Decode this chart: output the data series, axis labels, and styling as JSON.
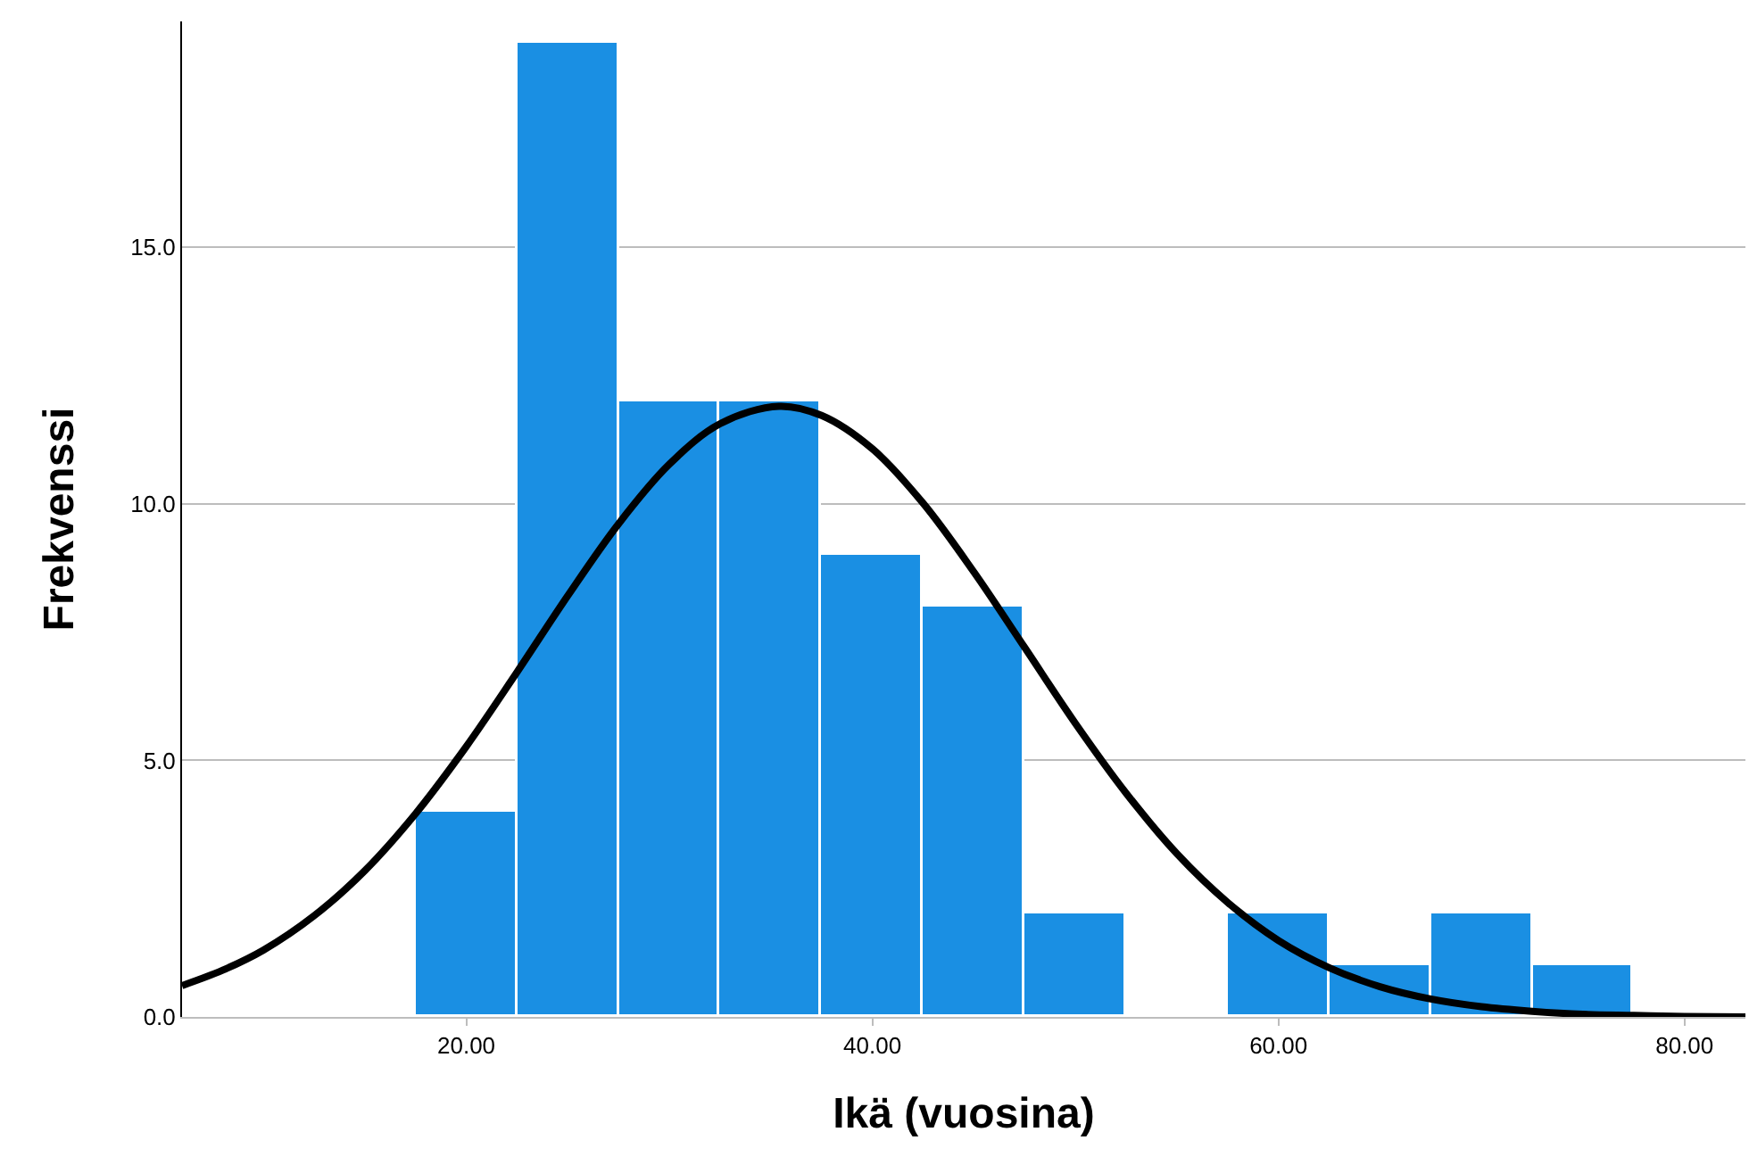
{
  "chart_data": {
    "type": "histogram",
    "xlabel": "Ikä (vuosina)",
    "ylabel": "Frekvenssi",
    "series": [
      {
        "color": "#1a8fe3",
        "bins": [
          17.5,
          22.5,
          27.5,
          32.5,
          37.5,
          42.5,
          47.5,
          52.5,
          57.5,
          62.5,
          67.5,
          72.5,
          77.5
        ],
        "values": [
          4,
          19,
          12,
          12,
          9,
          8,
          2,
          0,
          2,
          1,
          2,
          1
        ]
      },
      {
        "type": "line",
        "color": "#000000",
        "x": [
          6,
          8,
          10,
          12.5,
          15,
          17.5,
          20,
          22.5,
          25,
          27.5,
          30,
          32.5,
          35.4,
          37.5,
          40,
          42.5,
          45,
          47.5,
          50,
          52.5,
          55,
          57.5,
          60,
          62.5,
          65,
          67.5,
          70,
          72.5,
          75,
          77.5,
          80,
          83
        ],
        "values": [
          0.61,
          0.91,
          1.3,
          1.97,
          2.85,
          3.96,
          5.27,
          6.72,
          8.21,
          9.61,
          10.77,
          11.56,
          11.9,
          11.72,
          11.07,
          10.01,
          8.67,
          7.2,
          5.72,
          4.36,
          3.18,
          2.23,
          1.49,
          0.96,
          0.59,
          0.35,
          0.2,
          0.11,
          0.05,
          0.03,
          0.01,
          0
        ]
      }
    ],
    "xlim": [
      6,
      83
    ],
    "ylim": [
      0,
      19.4
    ],
    "xticks": [
      {
        "value": 20,
        "label": "20.00"
      },
      {
        "value": 40,
        "label": "40.00"
      },
      {
        "value": 60,
        "label": "60.00"
      },
      {
        "value": 80,
        "label": "80.00"
      }
    ],
    "yticks": [
      {
        "value": 0,
        "label": "0.0"
      },
      {
        "value": 5,
        "label": "5.0"
      },
      {
        "value": 10,
        "label": "10.0"
      },
      {
        "value": 15,
        "label": "15.0"
      }
    ],
    "grid": "y",
    "legend": false
  }
}
